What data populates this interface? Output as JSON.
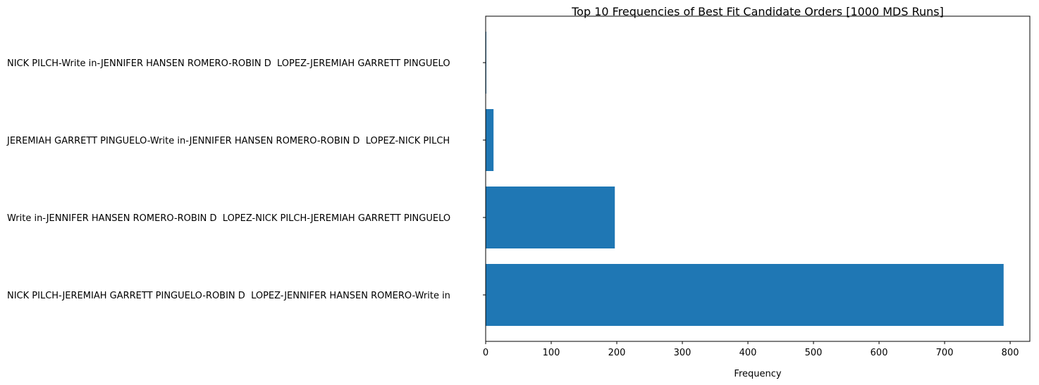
{
  "chart_data": {
    "type": "bar",
    "orientation": "horizontal",
    "title": "Top 10 Frequencies of Best Fit Candidate Orders [1000 MDS Runs]",
    "xlabel": "Frequency",
    "ylabel": "",
    "xlim": [
      0,
      830
    ],
    "xticks": [
      0,
      100,
      200,
      300,
      400,
      500,
      600,
      700,
      800
    ],
    "grid": false,
    "bar_color": "#1f77b4",
    "categories": [
      "NICK PILCH-JEREMIAH GARRETT PINGUELO-ROBIN D  LOPEZ-JENNIFER HANSEN ROMERO-Write in",
      "Write in-JENNIFER HANSEN ROMERO-ROBIN D  LOPEZ-NICK PILCH-JEREMIAH GARRETT PINGUELO",
      "JEREMIAH GARRETT PINGUELO-Write in-JENNIFER HANSEN ROMERO-ROBIN D  LOPEZ-NICK PILCH",
      "NICK PILCH-Write in-JENNIFER HANSEN ROMERO-ROBIN D  LOPEZ-JEREMIAH GARRETT PINGUELO"
    ],
    "values": [
      790,
      197,
      12,
      1
    ]
  }
}
